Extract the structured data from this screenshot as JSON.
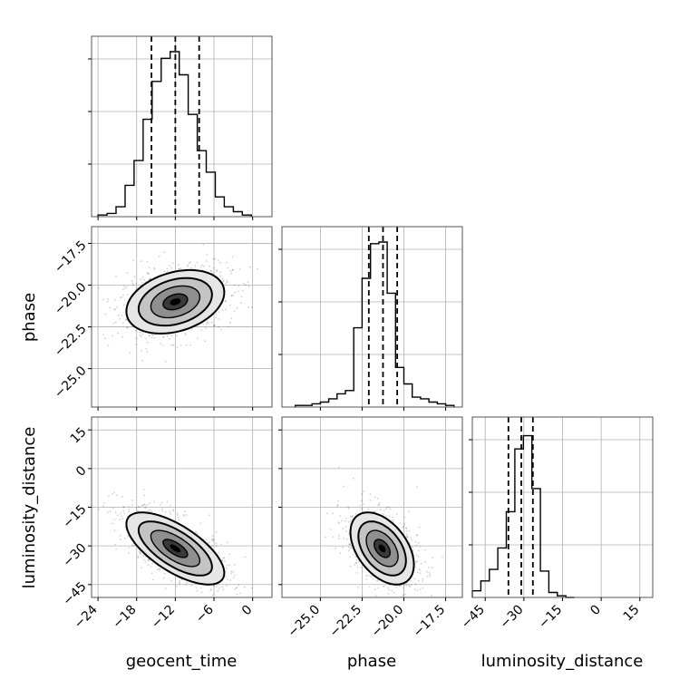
{
  "chart_data": {
    "type": "corner",
    "parameters": [
      "geocent_time",
      "phase",
      "luminosity_distance"
    ],
    "axis_labels": {
      "x": [
        "geocent_time",
        "phase",
        "luminosity_distance"
      ],
      "y": [
        "",
        "phase",
        "luminosity_distance"
      ]
    },
    "ranges": {
      "geocent_time": [
        -25,
        3
      ],
      "phase": [
        -27.3,
        -16.5
      ],
      "luminosity_distance": [
        -50,
        20
      ]
    },
    "ticks": {
      "geocent_time": {
        "values": [
          -24,
          -18,
          -12,
          -6,
          0
        ],
        "labels": [
          "−24",
          "−18",
          "−12",
          "−6",
          "0"
        ]
      },
      "phase": {
        "values": [
          -25.0,
          -22.5,
          -20.0,
          -17.5
        ],
        "labels": [
          "−25.0",
          "−22.5",
          "−20.0",
          "−17.5"
        ]
      },
      "luminosity_distance": {
        "values": [
          -45,
          -30,
          -15,
          0,
          15
        ],
        "labels": [
          "−45",
          "−30",
          "−15",
          "0",
          "15"
        ]
      }
    },
    "histograms": [
      {
        "parameter": "geocent_time",
        "bin_edges": [
          -24.0,
          -22.6,
          -21.2,
          -19.8,
          -18.4,
          -17.0,
          -15.6,
          -14.2,
          -12.8,
          -11.4,
          -10.0,
          -8.6,
          -7.2,
          -5.8,
          -4.4,
          -3.0,
          -1.6,
          -0.2
        ],
        "counts": [
          0.01,
          0.02,
          0.06,
          0.19,
          0.34,
          0.59,
          0.82,
          0.96,
          1.0,
          0.86,
          0.62,
          0.4,
          0.27,
          0.12,
          0.06,
          0.03,
          0.01
        ],
        "quantiles": [
          -15.7,
          -12.0,
          -8.3
        ]
      },
      {
        "parameter": "phase",
        "bin_edges": [
          -26.5,
          -26.0,
          -25.5,
          -25.0,
          -24.5,
          -24.0,
          -23.5,
          -23.0,
          -22.5,
          -22.0,
          -21.5,
          -21.0,
          -20.5,
          -20.0,
          -19.5,
          -19.0,
          -18.5,
          -18.0,
          -17.5,
          -17.0
        ],
        "counts": [
          0.01,
          0.01,
          0.02,
          0.03,
          0.05,
          0.08,
          0.1,
          0.48,
          0.78,
          0.99,
          1.0,
          0.69,
          0.24,
          0.14,
          0.06,
          0.05,
          0.03,
          0.02,
          0.01
        ],
        "quantiles": [
          -22.1,
          -21.25,
          -20.4
        ]
      },
      {
        "parameter": "luminosity_distance",
        "bin_edges": [
          -50.0,
          -46.7,
          -43.4,
          -40.1,
          -36.8,
          -33.5,
          -30.2,
          -26.9,
          -23.6,
          -20.3,
          -17.0,
          -13.7,
          -10.4
        ],
        "counts": [
          0.04,
          0.1,
          0.17,
          0.3,
          0.52,
          0.9,
          0.98,
          0.66,
          0.16,
          0.03,
          0.01,
          0.0
        ],
        "quantiles": [
          -36.0,
          -31.0,
          -26.5
        ]
      }
    ],
    "scatter_panels": [
      {
        "x": "geocent_time",
        "y": "phase",
        "center": [
          -12.0,
          -21.0
        ],
        "sd": [
          3.8,
          0.95
        ],
        "correlation": 0.3
      },
      {
        "x": "geocent_time",
        "y": "luminosity_distance",
        "center": [
          -12.0,
          -31.0
        ],
        "sd": [
          3.8,
          7.0
        ],
        "correlation": -0.68
      },
      {
        "x": "phase",
        "y": "luminosity_distance",
        "center": [
          -21.3,
          -31.0
        ],
        "sd": [
          0.95,
          7.0
        ],
        "correlation": -0.45
      }
    ],
    "contour_levels_sigma": [
      0.5,
      1.0,
      1.5,
      2.0
    ],
    "grid": true,
    "legend": "none"
  }
}
